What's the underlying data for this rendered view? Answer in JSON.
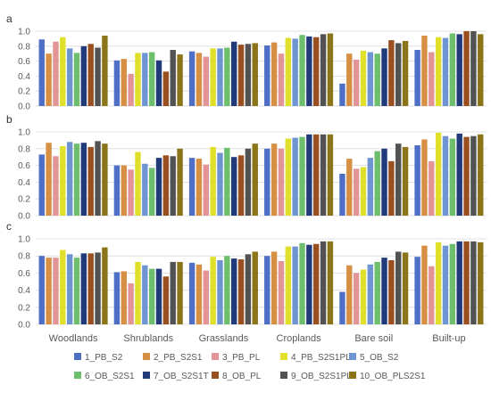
{
  "chart_data": {
    "type": "bar",
    "categories": [
      "Woodlands",
      "Shrublands",
      "Grasslands",
      "Croplands",
      "Bare soil",
      "Built-up"
    ],
    "ylim": [
      0,
      1.0
    ],
    "yticks": [
      "0.0",
      "0.2",
      "0.4",
      "0.6",
      "0.8",
      "1.0"
    ],
    "grid": "horizontal",
    "legend_placement": "bottom",
    "series_meta": [
      {
        "name": "1_PB_S2",
        "color": "#4e6fc5"
      },
      {
        "name": "2_PB_S2S1",
        "color": "#d68f43"
      },
      {
        "name": "3_PB_PL",
        "color": "#e39497"
      },
      {
        "name": "4_PB_S2S1PL",
        "color": "#e0e02a"
      },
      {
        "name": "5_OB_S2",
        "color": "#6e95d1"
      },
      {
        "name": "6_OB_S2S1",
        "color": "#6dbf6e"
      },
      {
        "name": "7_OB_S2S1T",
        "color": "#203a7a"
      },
      {
        "name": "8_OB_PL",
        "color": "#9a4f20"
      },
      {
        "name": "9_OB_S2S1PL",
        "color": "#525252"
      },
      {
        "name": "10_OB_PLS2S1",
        "color": "#8c7419"
      }
    ],
    "panels": [
      {
        "label": "a",
        "series": [
          {
            "name": "1_PB_S2",
            "values": [
              0.89,
              0.61,
              0.73,
              0.81,
              0.3,
              0.75
            ]
          },
          {
            "name": "2_PB_S2S1",
            "values": [
              0.7,
              0.63,
              0.71,
              0.85,
              0.7,
              0.94
            ]
          },
          {
            "name": "3_PB_PL",
            "values": [
              0.86,
              0.43,
              0.66,
              0.7,
              0.62,
              0.72
            ]
          },
          {
            "name": "4_PB_S2S1PL",
            "values": [
              0.92,
              0.71,
              0.77,
              0.91,
              0.74,
              0.92
            ]
          },
          {
            "name": "5_OB_S2",
            "values": [
              0.77,
              0.71,
              0.77,
              0.9,
              0.72,
              0.91
            ]
          },
          {
            "name": "6_OB_S2S1",
            "values": [
              0.71,
              0.72,
              0.78,
              0.95,
              0.7,
              0.97
            ]
          },
          {
            "name": "7_OB_S2S1T",
            "values": [
              0.8,
              0.61,
              0.86,
              0.93,
              0.77,
              0.96
            ]
          },
          {
            "name": "8_OB_PL",
            "values": [
              0.83,
              0.46,
              0.82,
              0.92,
              0.88,
              1.0
            ]
          },
          {
            "name": "9_OB_S2S1PL",
            "values": [
              0.78,
              0.75,
              0.83,
              0.96,
              0.84,
              1.0
            ]
          },
          {
            "name": "10_OB_PLS2S1",
            "values": [
              0.94,
              0.69,
              0.84,
              0.97,
              0.87,
              0.96
            ]
          }
        ]
      },
      {
        "label": "b",
        "series": [
          {
            "name": "1_PB_S2",
            "values": [
              0.73,
              0.6,
              0.69,
              0.8,
              0.5,
              0.84
            ]
          },
          {
            "name": "2_PB_S2S1",
            "values": [
              0.87,
              0.6,
              0.68,
              0.86,
              0.68,
              0.91
            ]
          },
          {
            "name": "3_PB_PL",
            "values": [
              0.71,
              0.55,
              0.61,
              0.8,
              0.56,
              0.65
            ]
          },
          {
            "name": "4_PB_S2S1PL",
            "values": [
              0.83,
              0.76,
              0.82,
              0.92,
              0.58,
              0.99
            ]
          },
          {
            "name": "5_OB_S2",
            "values": [
              0.88,
              0.62,
              0.75,
              0.93,
              0.69,
              0.95
            ]
          },
          {
            "name": "6_OB_S2S1",
            "values": [
              0.86,
              0.57,
              0.81,
              0.94,
              0.77,
              0.92
            ]
          },
          {
            "name": "7_OB_S2S1T",
            "values": [
              0.87,
              0.69,
              0.7,
              0.97,
              0.8,
              0.98
            ]
          },
          {
            "name": "8_OB_PL",
            "values": [
              0.82,
              0.72,
              0.72,
              0.97,
              0.65,
              0.94
            ]
          },
          {
            "name": "9_OB_S2S1PL",
            "values": [
              0.89,
              0.71,
              0.8,
              0.97,
              0.86,
              0.95
            ]
          },
          {
            "name": "10_OB_PLS2S1",
            "values": [
              0.86,
              0.8,
              0.86,
              0.97,
              0.82,
              0.97
            ]
          }
        ]
      },
      {
        "label": "c",
        "series": [
          {
            "name": "1_PB_S2",
            "values": [
              0.8,
              0.61,
              0.72,
              0.8,
              0.38,
              0.79
            ]
          },
          {
            "name": "2_PB_S2S1",
            "values": [
              0.78,
              0.62,
              0.7,
              0.85,
              0.69,
              0.92
            ]
          },
          {
            "name": "3_PB_PL",
            "values": [
              0.78,
              0.48,
              0.63,
              0.74,
              0.6,
              0.68
            ]
          },
          {
            "name": "4_PB_S2S1PL",
            "values": [
              0.87,
              0.73,
              0.79,
              0.91,
              0.64,
              0.96
            ]
          },
          {
            "name": "5_OB_S2",
            "values": [
              0.82,
              0.69,
              0.75,
              0.91,
              0.7,
              0.92
            ]
          },
          {
            "name": "6_OB_S2S1",
            "values": [
              0.78,
              0.65,
              0.8,
              0.95,
              0.73,
              0.94
            ]
          },
          {
            "name": "7_OB_S2S1T",
            "values": [
              0.83,
              0.65,
              0.77,
              0.93,
              0.78,
              0.97
            ]
          },
          {
            "name": "8_OB_PL",
            "values": [
              0.83,
              0.56,
              0.76,
              0.94,
              0.75,
              0.97
            ]
          },
          {
            "name": "9_OB_S2S1PL",
            "values": [
              0.84,
              0.73,
              0.82,
              0.97,
              0.85,
              0.97
            ]
          },
          {
            "name": "10_OB_PLS2S1",
            "values": [
              0.9,
              0.73,
              0.85,
              0.97,
              0.84,
              0.96
            ]
          }
        ]
      }
    ]
  }
}
